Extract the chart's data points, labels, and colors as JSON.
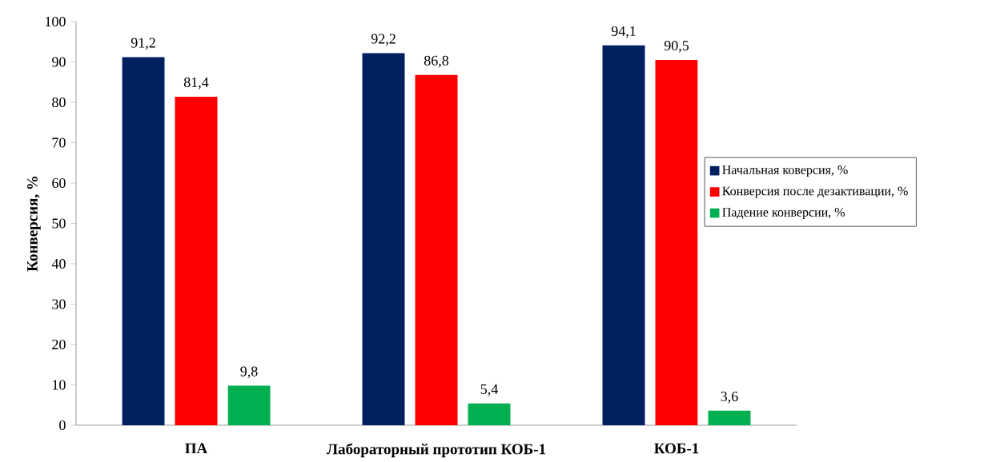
{
  "chart_data": {
    "type": "bar",
    "ylabel": "Конверсия, %",
    "categories": [
      "ПА",
      "Лабораторный прототип КОБ-1",
      "КОБ-1"
    ],
    "series": [
      {
        "name": "Начальная коверсия, %",
        "color": "#002060",
        "values": [
          91.2,
          92.2,
          94.1
        ],
        "value_labels": [
          "91,2",
          "92,2",
          "94,1"
        ]
      },
      {
        "name": "Конверсия после дезактивации, %",
        "color": "#ff0000",
        "values": [
          81.4,
          86.8,
          90.5
        ],
        "value_labels": [
          "81,4",
          "86,8",
          "90,5"
        ]
      },
      {
        "name": "Падение конверсии, %",
        "color": "#00b050",
        "values": [
          9.8,
          5.4,
          3.6
        ],
        "value_labels": [
          "9,8",
          "5,4",
          "3,6"
        ]
      }
    ],
    "ylim": [
      0,
      100
    ],
    "yticks": [
      0,
      10,
      20,
      30,
      40,
      50,
      60,
      70,
      80,
      90,
      100
    ],
    "grid": false,
    "legend": "right"
  }
}
